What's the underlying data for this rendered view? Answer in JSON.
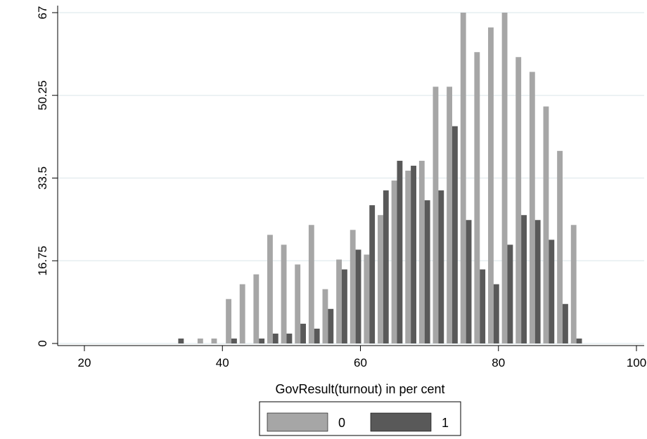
{
  "chart_data": {
    "type": "bar",
    "xlabel": "GovResult(turnout) in per cent",
    "ylabel": "",
    "xlim": [
      20,
      100
    ],
    "ylim": [
      0,
      67
    ],
    "xticks": [
      20,
      40,
      60,
      80,
      100
    ],
    "yticks": [
      "0",
      "16.75",
      "33.5",
      "50.25",
      "67"
    ],
    "ytick_values": [
      0,
      16.75,
      33.5,
      50.25,
      67
    ],
    "grid": true,
    "legend": "bottom-center",
    "bar_width": 0.8,
    "x": [
      33.6,
      37.2,
      39.2,
      41.3,
      43.3,
      45.3,
      47.3,
      49.3,
      51.3,
      53.3,
      55.3,
      57.3,
      59.3,
      61.3,
      63.3,
      65.3,
      67.3,
      69.3,
      71.3,
      73.3,
      75.3,
      77.3,
      79.3,
      81.3,
      83.3,
      85.3,
      87.3,
      89.3,
      91.3,
      93.3,
      95.3,
      97.3
    ],
    "series": [
      {
        "name": "0",
        "color": "#a6a6a6",
        "values": [
          0,
          1,
          1,
          9,
          12,
          14,
          22,
          20,
          16,
          24,
          11,
          17,
          23,
          18,
          26,
          33,
          35,
          37,
          52,
          52,
          67,
          59,
          64,
          67,
          58,
          55,
          48,
          39,
          24,
          0,
          0,
          0
        ],
        "offset": -0.4
      },
      {
        "name": "1",
        "color": "#595959",
        "values": [
          1,
          0,
          0,
          1,
          0,
          1,
          2,
          2,
          4,
          3,
          7,
          15,
          19,
          28,
          31,
          37,
          36,
          29,
          31,
          44,
          25,
          15,
          12,
          20,
          26,
          25,
          21,
          8,
          1,
          0,
          0,
          0
        ],
        "offset": 0.4
      }
    ]
  }
}
